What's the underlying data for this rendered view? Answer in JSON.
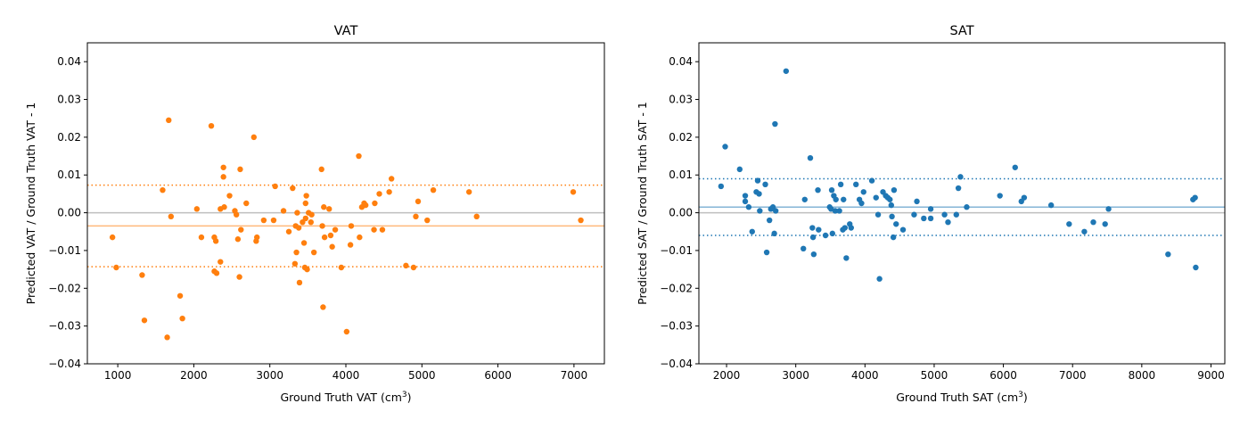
{
  "chart_data": [
    {
      "type": "scatter",
      "title": "VAT",
      "xlabel_main": "Ground Truth VAT (cm",
      "xlabel_sup": "3",
      "xlabel_tail": ")",
      "ylabel": "Predicted VAT / Ground Truth VAT - 1",
      "xlim": [
        600,
        7400
      ],
      "ylim": [
        -0.04,
        0.045
      ],
      "xticks": [
        1000,
        2000,
        3000,
        4000,
        5000,
        6000,
        7000
      ],
      "xtick_labels": [
        "1000",
        "2000",
        "3000",
        "4000",
        "5000",
        "6000",
        "7000"
      ],
      "yticks": [
        -0.04,
        -0.03,
        -0.02,
        -0.01,
        0.0,
        0.01,
        0.02,
        0.03,
        0.04
      ],
      "ytick_labels": [
        "−0.04",
        "−0.03",
        "−0.02",
        "−0.01",
        "0.00",
        "0.01",
        "0.02",
        "0.03",
        "0.04"
      ],
      "color": "#ff7f0e",
      "mean": -0.0035,
      "upper_limit": 0.0073,
      "lower_limit": -0.0143,
      "zero_line": 0.0,
      "points": [
        [
          930,
          -0.0065
        ],
        [
          980,
          -0.0145
        ],
        [
          1320,
          -0.0165
        ],
        [
          1350,
          -0.0285
        ],
        [
          1590,
          0.006
        ],
        [
          1650,
          -0.033
        ],
        [
          1670,
          0.0245
        ],
        [
          1700,
          -0.001
        ],
        [
          1820,
          -0.022
        ],
        [
          1850,
          -0.028
        ],
        [
          2040,
          0.001
        ],
        [
          2100,
          -0.0065
        ],
        [
          2230,
          0.023
        ],
        [
          2270,
          -0.0065
        ],
        [
          2270,
          -0.0155
        ],
        [
          2290,
          -0.0075
        ],
        [
          2300,
          -0.016
        ],
        [
          2350,
          -0.013
        ],
        [
          2350,
          0.001
        ],
        [
          2390,
          0.012
        ],
        [
          2390,
          0.0095
        ],
        [
          2400,
          0.0015
        ],
        [
          2470,
          0.0045
        ],
        [
          2540,
          0.0005
        ],
        [
          2560,
          -0.0005
        ],
        [
          2580,
          -0.007
        ],
        [
          2600,
          -0.017
        ],
        [
          2610,
          0.0115
        ],
        [
          2620,
          -0.0045
        ],
        [
          2690,
          0.0025
        ],
        [
          2790,
          0.02
        ],
        [
          2820,
          -0.0075
        ],
        [
          2830,
          -0.0065
        ],
        [
          2920,
          -0.002
        ],
        [
          3050,
          -0.002
        ],
        [
          3070,
          0.007
        ],
        [
          3180,
          0.0005
        ],
        [
          3250,
          -0.005
        ],
        [
          3300,
          0.0065
        ],
        [
          3330,
          -0.0135
        ],
        [
          3340,
          -0.0035
        ],
        [
          3350,
          -0.0105
        ],
        [
          3360,
          0.0
        ],
        [
          3380,
          -0.004
        ],
        [
          3390,
          -0.0185
        ],
        [
          3430,
          -0.0025
        ],
        [
          3450,
          -0.008
        ],
        [
          3460,
          -0.0145
        ],
        [
          3470,
          0.0025
        ],
        [
          3470,
          -0.0015
        ],
        [
          3480,
          0.0045
        ],
        [
          3490,
          -0.015
        ],
        [
          3510,
          0.0
        ],
        [
          3540,
          -0.0025
        ],
        [
          3550,
          -0.0005
        ],
        [
          3580,
          -0.0105
        ],
        [
          3680,
          0.0115
        ],
        [
          3690,
          -0.0035
        ],
        [
          3700,
          -0.025
        ],
        [
          3710,
          0.0015
        ],
        [
          3720,
          -0.0065
        ],
        [
          3780,
          0.001
        ],
        [
          3800,
          -0.006
        ],
        [
          3820,
          -0.009
        ],
        [
          3860,
          -0.0045
        ],
        [
          3940,
          -0.0145
        ],
        [
          4010,
          -0.0315
        ],
        [
          4060,
          -0.0085
        ],
        [
          4070,
          -0.0035
        ],
        [
          4170,
          0.015
        ],
        [
          4180,
          -0.0065
        ],
        [
          4210,
          0.0015
        ],
        [
          4240,
          0.0025
        ],
        [
          4260,
          0.002
        ],
        [
          4370,
          -0.0045
        ],
        [
          4380,
          0.0025
        ],
        [
          4440,
          0.005
        ],
        [
          4480,
          -0.0045
        ],
        [
          4570,
          0.0055
        ],
        [
          4600,
          0.009
        ],
        [
          4790,
          -0.014
        ],
        [
          4890,
          -0.0145
        ],
        [
          4920,
          -0.001
        ],
        [
          4950,
          0.003
        ],
        [
          5070,
          -0.002
        ],
        [
          5150,
          0.006
        ],
        [
          5620,
          0.0055
        ],
        [
          5720,
          -0.001
        ],
        [
          6990,
          0.0055
        ],
        [
          7090,
          -0.002
        ]
      ]
    },
    {
      "type": "scatter",
      "title": "SAT",
      "xlabel_main": "Ground Truth SAT (cm",
      "xlabel_sup": "3",
      "xlabel_tail": ")",
      "ylabel": "Predicted SAT / Ground Truth SAT - 1",
      "xlim": [
        1600,
        9200
      ],
      "ylim": [
        -0.04,
        0.045
      ],
      "xticks": [
        2000,
        3000,
        4000,
        5000,
        6000,
        7000,
        8000,
        9000
      ],
      "xtick_labels": [
        "2000",
        "3000",
        "4000",
        "5000",
        "6000",
        "7000",
        "8000",
        "9000"
      ],
      "yticks": [
        -0.04,
        -0.03,
        -0.02,
        -0.01,
        0.0,
        0.01,
        0.02,
        0.03,
        0.04
      ],
      "ytick_labels": [
        "−0.04",
        "−0.03",
        "−0.02",
        "−0.01",
        "0.00",
        "0.01",
        "0.02",
        "0.03",
        "0.04"
      ],
      "color": "#1f77b4",
      "mean": 0.0015,
      "upper_limit": 0.009,
      "lower_limit": -0.006,
      "zero_line": 0.0,
      "points": [
        [
          1920,
          0.007
        ],
        [
          1980,
          0.0175
        ],
        [
          2190,
          0.0115
        ],
        [
          2270,
          0.0045
        ],
        [
          2270,
          0.003
        ],
        [
          2320,
          0.0015
        ],
        [
          2370,
          -0.005
        ],
        [
          2430,
          0.0055
        ],
        [
          2450,
          0.0085
        ],
        [
          2470,
          0.005
        ],
        [
          2480,
          0.0005
        ],
        [
          2560,
          0.0075
        ],
        [
          2580,
          -0.0105
        ],
        [
          2620,
          -0.002
        ],
        [
          2640,
          0.001
        ],
        [
          2670,
          0.0015
        ],
        [
          2690,
          -0.0055
        ],
        [
          2700,
          0.0235
        ],
        [
          2710,
          0.0005
        ],
        [
          2860,
          0.0375
        ],
        [
          3110,
          -0.0095
        ],
        [
          3130,
          0.0035
        ],
        [
          3210,
          0.0145
        ],
        [
          3240,
          -0.004
        ],
        [
          3250,
          -0.0065
        ],
        [
          3260,
          -0.011
        ],
        [
          3320,
          0.006
        ],
        [
          3330,
          -0.0045
        ],
        [
          3430,
          -0.006
        ],
        [
          3490,
          0.0015
        ],
        [
          3510,
          0.001
        ],
        [
          3520,
          0.006
        ],
        [
          3530,
          -0.0055
        ],
        [
          3550,
          0.0045
        ],
        [
          3570,
          0.0005
        ],
        [
          3580,
          0.0035
        ],
        [
          3630,
          0.0005
        ],
        [
          3650,
          0.0075
        ],
        [
          3680,
          -0.0045
        ],
        [
          3690,
          0.0035
        ],
        [
          3710,
          -0.004
        ],
        [
          3730,
          -0.012
        ],
        [
          3780,
          -0.003
        ],
        [
          3800,
          -0.004
        ],
        [
          3870,
          0.0075
        ],
        [
          3920,
          0.0035
        ],
        [
          3950,
          0.0025
        ],
        [
          3980,
          0.0055
        ],
        [
          4100,
          0.0085
        ],
        [
          4160,
          0.004
        ],
        [
          4190,
          -0.0005
        ],
        [
          4210,
          -0.0175
        ],
        [
          4260,
          0.0055
        ],
        [
          4300,
          0.0045
        ],
        [
          4330,
          0.004
        ],
        [
          4360,
          0.0035
        ],
        [
          4380,
          0.002
        ],
        [
          4390,
          -0.001
        ],
        [
          4410,
          -0.0065
        ],
        [
          4420,
          0.006
        ],
        [
          4450,
          -0.003
        ],
        [
          4550,
          -0.0045
        ],
        [
          4710,
          -0.0005
        ],
        [
          4750,
          0.003
        ],
        [
          4850,
          -0.0015
        ],
        [
          4950,
          0.001
        ],
        [
          4950,
          -0.0015
        ],
        [
          5150,
          -0.0005
        ],
        [
          5200,
          -0.0025
        ],
        [
          5320,
          -0.0005
        ],
        [
          5350,
          0.0065
        ],
        [
          5380,
          0.0095
        ],
        [
          5470,
          0.0015
        ],
        [
          5950,
          0.0045
        ],
        [
          6170,
          0.012
        ],
        [
          6260,
          0.003
        ],
        [
          6300,
          0.004
        ],
        [
          6690,
          0.002
        ],
        [
          6950,
          -0.003
        ],
        [
          7170,
          -0.005
        ],
        [
          7300,
          -0.0025
        ],
        [
          7470,
          -0.003
        ],
        [
          7520,
          0.001
        ],
        [
          8380,
          -0.011
        ],
        [
          8740,
          0.0035
        ],
        [
          8770,
          0.004
        ],
        [
          8780,
          -0.0145
        ]
      ]
    }
  ]
}
